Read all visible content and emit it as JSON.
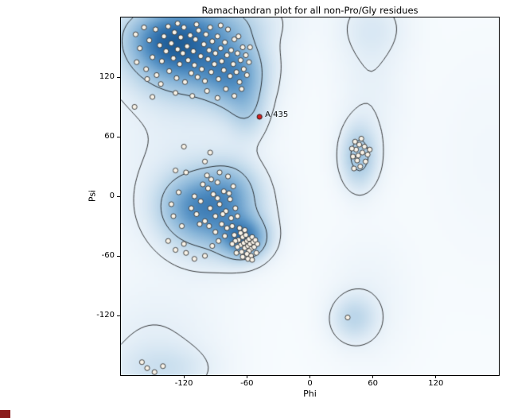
{
  "chart_data": {
    "type": "scatter",
    "title": "Ramachandran plot for all non-Pro/Gly residues",
    "xlabel": "Phi",
    "ylabel": "Psi",
    "xlim": [
      -180,
      180
    ],
    "ylim": [
      -180,
      180
    ],
    "xticks": [
      -120,
      -60,
      0,
      60,
      120
    ],
    "yticks": [
      120,
      60,
      0,
      -60,
      -120
    ],
    "grid": false,
    "legend": "none",
    "highlight": {
      "label": "A 435",
      "phi": -48,
      "psi": 80
    },
    "points": [
      [
        -166,
        163
      ],
      [
        -162,
        149
      ],
      [
        -158,
        170
      ],
      [
        -156,
        128
      ],
      [
        -153,
        157
      ],
      [
        -150,
        140
      ],
      [
        -147,
        168
      ],
      [
        -146,
        122
      ],
      [
        -143,
        152
      ],
      [
        -141,
        136
      ],
      [
        -139,
        161
      ],
      [
        -137,
        146
      ],
      [
        -135,
        171
      ],
      [
        -134,
        126
      ],
      [
        -132,
        154
      ],
      [
        -130,
        139
      ],
      [
        -129,
        165
      ],
      [
        -127,
        119
      ],
      [
        -126,
        148
      ],
      [
        -124,
        133
      ],
      [
        -123,
        160
      ],
      [
        -121,
        144
      ],
      [
        -120,
        170
      ],
      [
        -119,
        115
      ],
      [
        -117,
        151
      ],
      [
        -116,
        137
      ],
      [
        -114,
        162
      ],
      [
        -113,
        124
      ],
      [
        -111,
        146
      ],
      [
        -110,
        132
      ],
      [
        -109,
        158
      ],
      [
        -107,
        120
      ],
      [
        -106,
        167
      ],
      [
        -104,
        141
      ],
      [
        -103,
        128
      ],
      [
        -101,
        153
      ],
      [
        -100,
        116
      ],
      [
        -99,
        163
      ],
      [
        -97,
        138
      ],
      [
        -96,
        147
      ],
      [
        -94,
        125
      ],
      [
        -93,
        156
      ],
      [
        -91,
        133
      ],
      [
        -90,
        144
      ],
      [
        -88,
        161
      ],
      [
        -87,
        118
      ],
      [
        -85,
        149
      ],
      [
        -84,
        136
      ],
      [
        -82,
        127
      ],
      [
        -81,
        155
      ],
      [
        -79,
        142
      ],
      [
        -78,
        168
      ],
      [
        -76,
        121
      ],
      [
        -75,
        147
      ],
      [
        -73,
        133
      ],
      [
        -72,
        158
      ],
      [
        -70,
        125
      ],
      [
        -69,
        144
      ],
      [
        -67,
        115
      ],
      [
        -66,
        137
      ],
      [
        -64,
        150
      ],
      [
        -63,
        128
      ],
      [
        -61,
        142
      ],
      [
        -95,
        170
      ],
      [
        -108,
        173
      ],
      [
        -126,
        174
      ],
      [
        -85,
        172
      ],
      [
        -68,
        161
      ],
      [
        -142,
        113
      ],
      [
        -155,
        118
      ],
      [
        -165,
        135
      ],
      [
        -150,
        100
      ],
      [
        -128,
        104
      ],
      [
        -112,
        101
      ],
      [
        -98,
        106
      ],
      [
        -88,
        99
      ],
      [
        -80,
        108
      ],
      [
        -72,
        101
      ],
      [
        -65,
        108
      ],
      [
        -60,
        122
      ],
      [
        -58,
        135
      ],
      [
        -57,
        150
      ],
      [
        -68,
        -44
      ],
      [
        -66,
        -49
      ],
      [
        -64,
        -41
      ],
      [
        -63,
        -47
      ],
      [
        -62,
        -52
      ],
      [
        -61,
        -39
      ],
      [
        -60,
        -45
      ],
      [
        -59,
        -50
      ],
      [
        -58,
        -43
      ],
      [
        -57,
        -48
      ],
      [
        -56,
        -53
      ],
      [
        -55,
        -41
      ],
      [
        -54,
        -46
      ],
      [
        -66,
        -37
      ],
      [
        -69,
        -51
      ],
      [
        -71,
        -45
      ],
      [
        -62,
        -34
      ],
      [
        -58,
        -55
      ],
      [
        -65,
        -56
      ],
      [
        -60,
        -58
      ],
      [
        -56,
        -60
      ],
      [
        -53,
        -51
      ],
      [
        -52,
        -44
      ],
      [
        -67,
        -32
      ],
      [
        -72,
        -39
      ],
      [
        -74,
        -48
      ],
      [
        -70,
        -57
      ],
      [
        -64,
        -61
      ],
      [
        -59,
        -63
      ],
      [
        -55,
        -64
      ],
      [
        -51,
        -57
      ],
      [
        -50,
        -48
      ],
      [
        -108,
        -18
      ],
      [
        -104,
        -5
      ],
      [
        -100,
        -25
      ],
      [
        -97,
        8
      ],
      [
        -95,
        -12
      ],
      [
        -92,
        2
      ],
      [
        -90,
        -20
      ],
      [
        -88,
        14
      ],
      [
        -86,
        -8
      ],
      [
        -84,
        -28
      ],
      [
        -82,
        5
      ],
      [
        -80,
        -15
      ],
      [
        -78,
        20
      ],
      [
        -76,
        -3
      ],
      [
        -96,
        -30
      ],
      [
        -102,
        12
      ],
      [
        -110,
        0
      ],
      [
        -86,
        24
      ],
      [
        -79,
        -32
      ],
      [
        -90,
        -36
      ],
      [
        -75,
        -22
      ],
      [
        -73,
        10
      ],
      [
        -98,
        21
      ],
      [
        -105,
        -28
      ],
      [
        -113,
        -12
      ],
      [
        -88,
        -2
      ],
      [
        -94,
        17
      ],
      [
        -83,
        -18
      ],
      [
        -77,
        3
      ],
      [
        -71,
        -12
      ],
      [
        -69,
        -20
      ],
      [
        -74,
        -30
      ],
      [
        -81,
        -40
      ],
      [
        -87,
        -45
      ],
      [
        -93,
        -50
      ],
      [
        -130,
        -20
      ],
      [
        -125,
        4
      ],
      [
        -135,
        -45
      ],
      [
        -120,
        -48
      ],
      [
        -128,
        -54
      ],
      [
        -118,
        24
      ],
      [
        -122,
        -30
      ],
      [
        -132,
        -8
      ],
      [
        -100,
        -60
      ],
      [
        -110,
        -63
      ],
      [
        -118,
        -57
      ],
      [
        -120,
        50
      ],
      [
        -128,
        26
      ],
      [
        -100,
        35
      ],
      [
        -95,
        44
      ],
      [
        44,
        47
      ],
      [
        47,
        52
      ],
      [
        41,
        40
      ],
      [
        50,
        44
      ],
      [
        45,
        36
      ],
      [
        52,
        50
      ],
      [
        48,
        30
      ],
      [
        43,
        55
      ],
      [
        55,
        42
      ],
      [
        40,
        48
      ],
      [
        46,
        41
      ],
      [
        53,
        35
      ],
      [
        49,
        58
      ],
      [
        42,
        28
      ],
      [
        57,
        47
      ],
      [
        36,
        -122
      ],
      [
        -155,
        -173
      ],
      [
        -148,
        -177
      ],
      [
        -140,
        -171
      ],
      [
        -160,
        -167
      ],
      [
        -167,
        90
      ]
    ],
    "density_kernels": [
      [
        -115,
        140,
        38,
        26,
        1.0
      ],
      [
        -72,
        122,
        20,
        24,
        0.7
      ],
      [
        -138,
        158,
        26,
        18,
        0.75
      ],
      [
        -105,
        178,
        45,
        16,
        0.5
      ],
      [
        -60,
        86,
        13,
        20,
        0.32
      ],
      [
        -63,
        -43,
        15,
        14,
        1.05
      ],
      [
        -92,
        -18,
        30,
        28,
        0.8
      ],
      [
        -115,
        -8,
        22,
        22,
        0.45
      ],
      [
        -76,
        8,
        18,
        20,
        0.4
      ],
      [
        47,
        40,
        12,
        22,
        0.6
      ],
      [
        42,
        -124,
        15,
        16,
        0.36
      ],
      [
        55,
        -105,
        28,
        45,
        0.1
      ],
      [
        -125,
        55,
        55,
        85,
        0.16
      ],
      [
        -150,
        -150,
        42,
        38,
        0.15
      ],
      [
        58,
        115,
        22,
        55,
        0.13
      ],
      [
        60,
        172,
        24,
        22,
        0.16
      ],
      [
        175,
        40,
        45,
        80,
        0.05
      ],
      [
        -140,
        -176,
        32,
        16,
        0.22
      ]
    ],
    "contour_levels": [
      0.085,
      0.3
    ],
    "style": {
      "figure_bg": "#ffffff",
      "plot_border": "#000000",
      "contour_color": "rgba(0,0,0,0.85)",
      "point_fill": "#f8f2e7",
      "point_stroke": "#333333",
      "highlight_fill": "#d62020",
      "highlight_stroke": "#111111",
      "colormap": [
        [
          0.0,
          "#f7fbfe"
        ],
        [
          0.1,
          "#e3eef7"
        ],
        [
          0.25,
          "#bdd7ea"
        ],
        [
          0.45,
          "#8cb8da"
        ],
        [
          0.65,
          "#5591c4"
        ],
        [
          0.85,
          "#2f6fab"
        ],
        [
          1.0,
          "#1f5c95"
        ]
      ]
    }
  },
  "corner_artifact": {
    "color": "#8b1b1b"
  }
}
